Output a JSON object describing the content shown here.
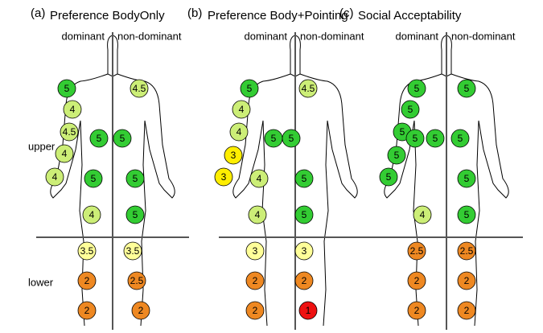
{
  "regions": {
    "upper": "upper",
    "lower": "lower"
  },
  "panels": [
    {
      "label": "(a)",
      "title": "Preference BodyOnly",
      "dominant": "dominant",
      "non_dominant": "non-dominant",
      "markers": [
        {
          "text": "5",
          "color": "#33cc33"
        },
        {
          "text": "4",
          "color": "#ccee77"
        },
        {
          "text": "4.5",
          "color": "#ccee77"
        },
        {
          "text": "5",
          "color": "#33cc33"
        },
        {
          "text": "4",
          "color": "#ccee77"
        },
        {
          "text": "4",
          "color": "#ccee77"
        },
        {
          "text": "5",
          "color": "#33cc33"
        },
        {
          "text": "4",
          "color": "#ccee77"
        },
        {
          "text": "3.5",
          "color": "#ffff99"
        },
        {
          "text": "2",
          "color": "#ee8822"
        },
        {
          "text": "2",
          "color": "#ee8822"
        },
        {
          "text": "4.5",
          "color": "#ccee77"
        },
        {
          "text": "5",
          "color": "#33cc33"
        },
        {
          "text": "5",
          "color": "#33cc33"
        },
        {
          "text": "5",
          "color": "#33cc33"
        },
        {
          "text": "3.5",
          "color": "#ffff99"
        },
        {
          "text": "2.5",
          "color": "#ee8822"
        },
        {
          "text": "2",
          "color": "#ee8822"
        }
      ]
    },
    {
      "label": "(b)",
      "title": "Preference Body+Pointing",
      "dominant": "dominant",
      "non_dominant": "non-dominant",
      "markers": [
        {
          "text": "5",
          "color": "#33cc33"
        },
        {
          "text": "4",
          "color": "#ccee77"
        },
        {
          "text": "4",
          "color": "#ccee77"
        },
        {
          "text": "5",
          "color": "#33cc33"
        },
        {
          "text": "3",
          "color": "#ffee00"
        },
        {
          "text": "3",
          "color": "#ffee00"
        },
        {
          "text": "4",
          "color": "#ccee77"
        },
        {
          "text": "4",
          "color": "#ccee77"
        },
        {
          "text": "3",
          "color": "#ffff99"
        },
        {
          "text": "2",
          "color": "#ee8822"
        },
        {
          "text": "2",
          "color": "#ee8822"
        },
        {
          "text": "4.5",
          "color": "#ccee77"
        },
        {
          "text": "5",
          "color": "#33cc33"
        },
        {
          "text": "5",
          "color": "#33cc33"
        },
        {
          "text": "5",
          "color": "#33cc33"
        },
        {
          "text": "3",
          "color": "#ffff99"
        },
        {
          "text": "2",
          "color": "#ee8822"
        },
        {
          "text": "1",
          "color": "#ee1111"
        }
      ]
    },
    {
      "label": "(c)",
      "title": "Social Acceptability",
      "dominant": "dominant",
      "non_dominant": "non-dominant",
      "markers": [
        {
          "text": "5",
          "color": "#33cc33"
        },
        {
          "text": "5",
          "color": "#33cc33"
        },
        {
          "text": "5",
          "color": "#33cc33"
        },
        {
          "text": "5",
          "color": "#33cc33"
        },
        {
          "text": "5",
          "color": "#33cc33"
        },
        {
          "text": "5",
          "color": "#33cc33"
        },
        {
          "text": "5",
          "color": "#33cc33"
        },
        {
          "text": "4",
          "color": "#ccee77"
        },
        {
          "text": "2.5",
          "color": "#ee8822"
        },
        {
          "text": "2",
          "color": "#ee8822"
        },
        {
          "text": "2",
          "color": "#ee8822"
        },
        {
          "text": "5",
          "color": "#33cc33"
        },
        {
          "text": "5",
          "color": "#33cc33"
        },
        {
          "text": "5",
          "color": "#33cc33"
        },
        {
          "text": "5",
          "color": "#33cc33"
        },
        {
          "text": "2.5",
          "color": "#ee8822"
        },
        {
          "text": "2",
          "color": "#ee8822"
        },
        {
          "text": "2",
          "color": "#ee8822"
        }
      ]
    }
  ]
}
